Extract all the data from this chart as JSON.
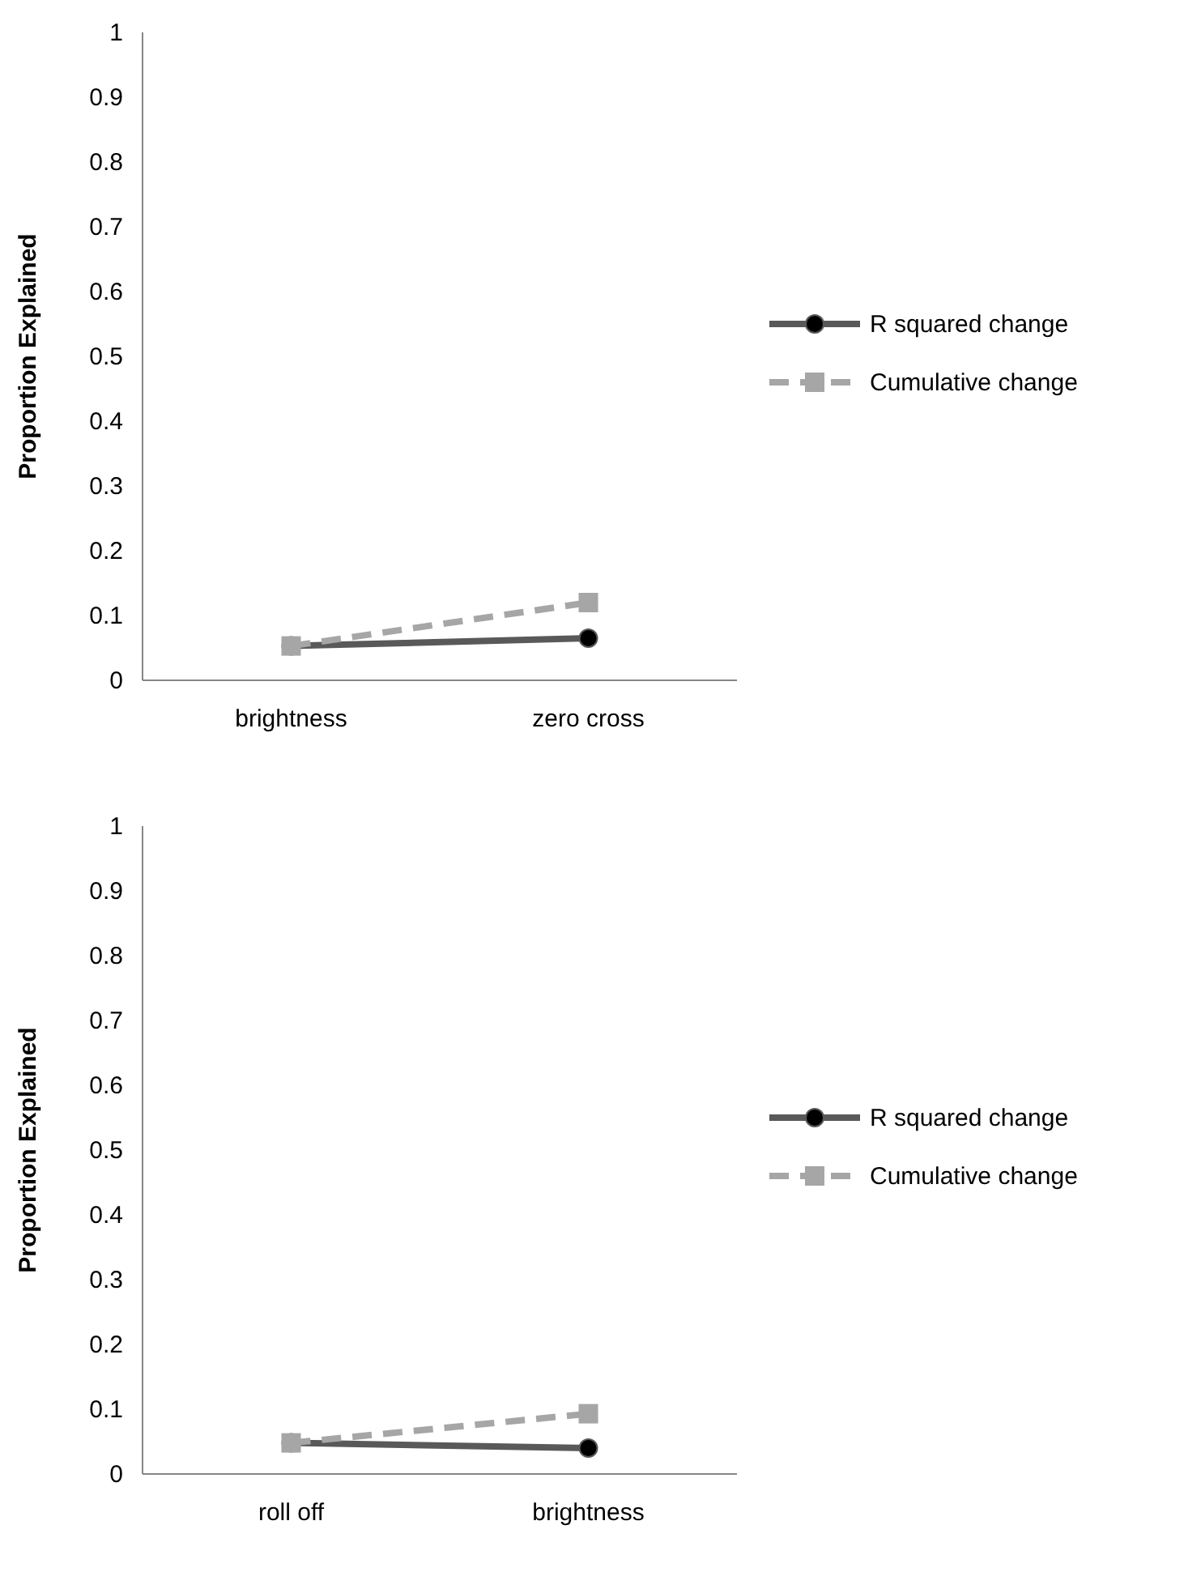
{
  "chart_data": [
    {
      "type": "line",
      "ylabel": "Proportion Explained",
      "categories": [
        "brightness",
        "zero cross"
      ],
      "ylim": [
        0,
        1
      ],
      "yticks": [
        0,
        0.1,
        0.2,
        0.3,
        0.4,
        0.5,
        0.6,
        0.7,
        0.8,
        0.9,
        1
      ],
      "grid": false,
      "legend": "right",
      "series": [
        {
          "name": "R squared change",
          "color": "#595959",
          "values": [
            0.053,
            0.065
          ],
          "marker": "circle",
          "line_style": "solid"
        },
        {
          "name": "Cumulative change",
          "color": "#a6a6a6",
          "values": [
            0.053,
            0.12
          ],
          "marker": "square",
          "line_style": "dashed"
        }
      ]
    },
    {
      "type": "line",
      "ylabel": "Proportion Explained",
      "categories": [
        "roll off",
        "brightness"
      ],
      "ylim": [
        0,
        1
      ],
      "yticks": [
        0,
        0.1,
        0.2,
        0.3,
        0.4,
        0.5,
        0.6,
        0.7,
        0.8,
        0.9,
        1
      ],
      "grid": false,
      "legend": "right",
      "series": [
        {
          "name": "R squared change",
          "color": "#595959",
          "values": [
            0.048,
            0.04
          ],
          "marker": "circle",
          "line_style": "solid"
        },
        {
          "name": "Cumulative change",
          "color": "#a6a6a6",
          "values": [
            0.048,
            0.093
          ],
          "marker": "square",
          "line_style": "dashed"
        }
      ]
    }
  ]
}
